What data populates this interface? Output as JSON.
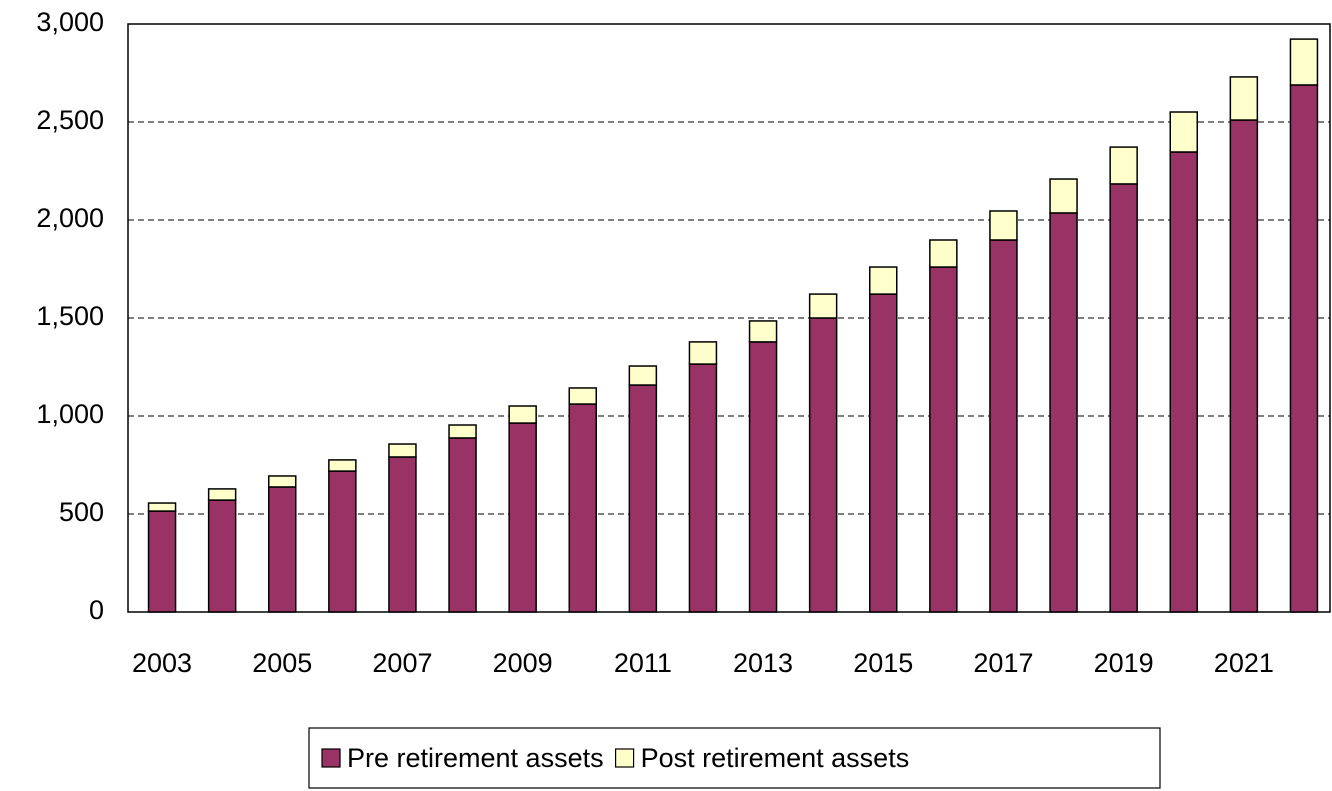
{
  "chart_data": {
    "type": "stacked_bar",
    "categories": [
      "2003",
      null,
      "2005",
      null,
      "2007",
      null,
      "2009",
      null,
      "2011",
      null,
      "2013",
      null,
      "2015",
      null,
      "2017",
      null,
      "2019",
      null,
      "2021",
      null
    ],
    "series": [
      {
        "name": "Pre retirement assets",
        "color": "#993366",
        "values": [
          515,
          571,
          638,
          719,
          791,
          888,
          964,
          1061,
          1158,
          1265,
          1378,
          1500,
          1622,
          1760,
          1898,
          2036,
          2184,
          2347,
          2510,
          2689
        ]
      },
      {
        "name": "Post retirement assets",
        "color": "#ffffcc",
        "values": [
          41,
          57,
          56,
          57,
          66,
          66,
          87,
          82,
          97,
          113,
          107,
          122,
          138,
          138,
          148,
          173,
          188,
          204,
          220,
          234
        ]
      }
    ],
    "ylim": [
      0,
      3000
    ],
    "yticks": [
      0,
      500,
      {
        "value": 1000,
        "label": "1,000"
      },
      {
        "value": 1500,
        "label": "1,500"
      },
      {
        "value": 2000,
        "label": "2,000"
      },
      {
        "value": 2500,
        "label": "2,500"
      },
      {
        "value": 3000,
        "label": "3,000"
      }
    ],
    "grid": true,
    "legend": "bottom"
  }
}
